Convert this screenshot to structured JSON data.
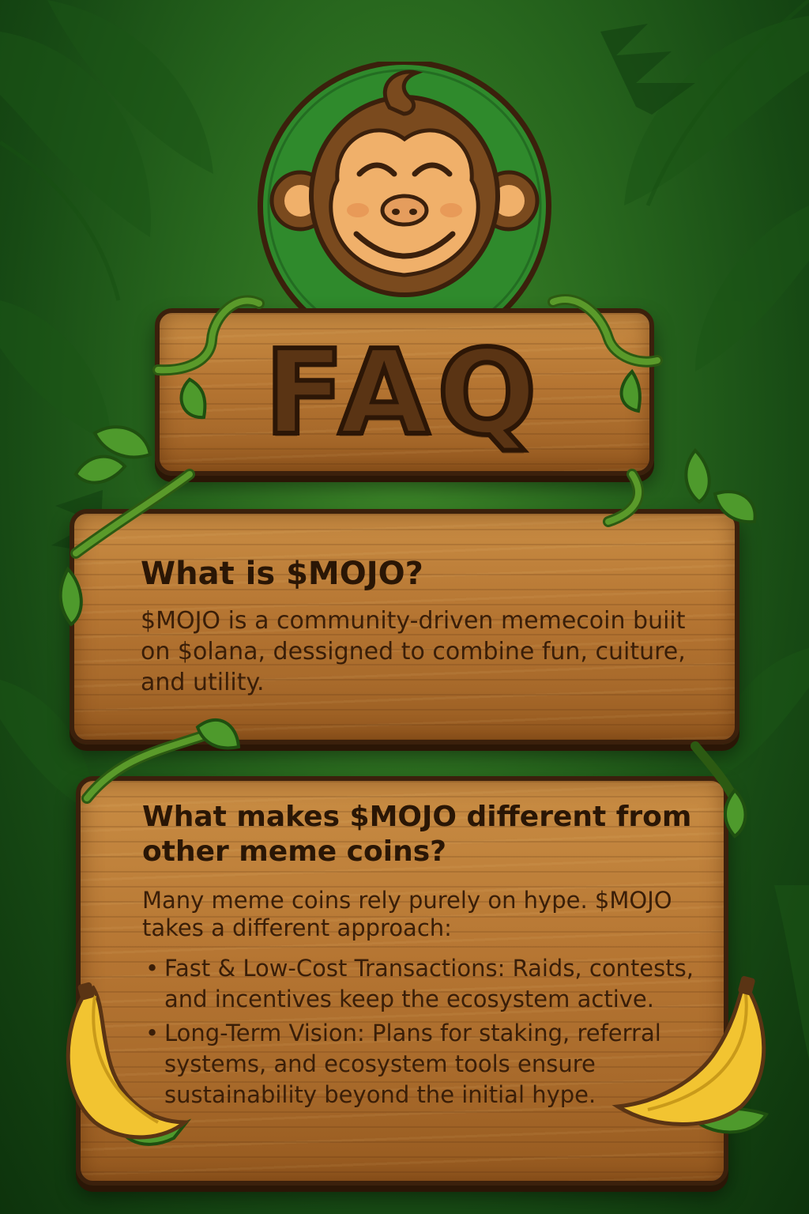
{
  "faq": {
    "title": "FAQ",
    "questions": [
      {
        "heading": "What is $MOJO?",
        "answer": "$MOJO is a community-driven memecoin buiit on $olana, dessigned to combine fun, cuiture, and utility."
      },
      {
        "heading": "What makes $MOJO different from other meme coins?",
        "intro": "Many meme coins rely purely on hype. $MOJO takes a different approach:",
        "bullets": [
          "Fast & Low-Cost Transactions: Raids, contests, and incentives keep the ecosystem active.",
          "Long-Term Vision: Plans for staking, referral systems, and ecosystem tools ensure sustainability beyond the initial hype."
        ]
      }
    ]
  },
  "icons": {
    "mascot": "monkey-face-icon",
    "leaves": "jungle-leaf-icon",
    "vines": "vine-icon",
    "bananas": "banana-icon"
  },
  "colors": {
    "jungle_green": "#2a6b1f",
    "emblem_green": "#2f8a2c",
    "wood": "#b57532",
    "dark_brown": "#3b200c",
    "monkey_brown": "#7a4a1e",
    "monkey_skin": "#f0b06a",
    "banana_yellow": "#f2c431"
  }
}
